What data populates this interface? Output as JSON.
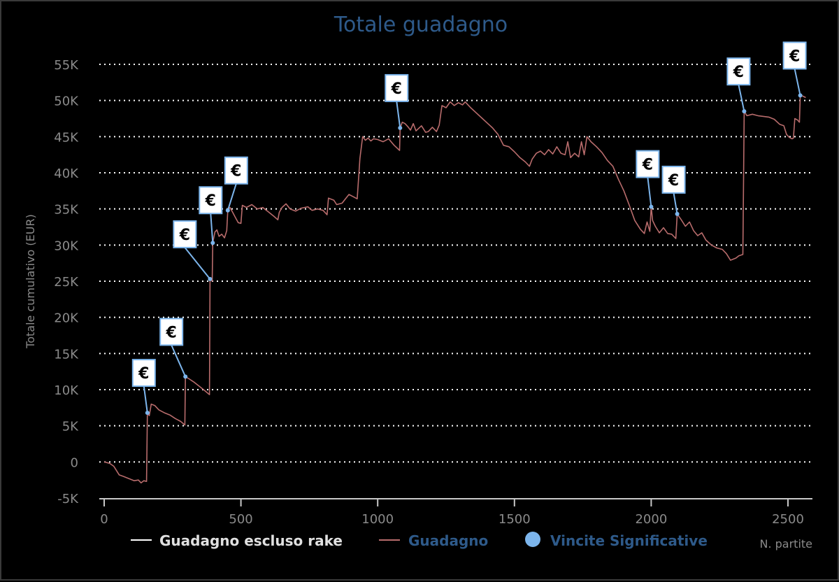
{
  "chart_data": {
    "type": "line",
    "title": "Totale guadagno",
    "xlabel": "N. partite",
    "ylabel": "Totale cumulativo (EUR)",
    "xlim": [
      -10,
      2590
    ],
    "ylim": [
      -5000,
      56000
    ],
    "x_ticks": [
      0,
      500,
      1000,
      1500,
      2000,
      2500
    ],
    "x_tick_labels": [
      "0",
      "500",
      "1000",
      "1500",
      "2000",
      "2500"
    ],
    "y_ticks": [
      -5000,
      0,
      5000,
      10000,
      15000,
      20000,
      25000,
      30000,
      35000,
      40000,
      45000,
      50000,
      55000
    ],
    "y_tick_labels": [
      "-5K",
      "0",
      "5K",
      "10K",
      "15K",
      "20K",
      "25K",
      "30K",
      "35K",
      "40K",
      "45K",
      "50K",
      "55K"
    ],
    "grid": "horizontal dotted",
    "legend_position": "bottom",
    "legend": [
      {
        "label": "Guadagno escluso rake",
        "color": "#ffffff",
        "marker": "line"
      },
      {
        "label": "Guadagno",
        "color": "#b86c6c",
        "marker": "line"
      },
      {
        "label": "Vincite Significative",
        "color": "#7cb5ec",
        "marker": "circle"
      }
    ],
    "series": [
      {
        "name": "Guadagno",
        "color": "#b86c6c",
        "points": [
          [
            0,
            0
          ],
          [
            20,
            -200
          ],
          [
            35,
            -600
          ],
          [
            45,
            -1200
          ],
          [
            55,
            -1800
          ],
          [
            70,
            -2000
          ],
          [
            90,
            -2300
          ],
          [
            110,
            -2600
          ],
          [
            125,
            -2500
          ],
          [
            135,
            -2900
          ],
          [
            145,
            -2600
          ],
          [
            155,
            -2700
          ],
          [
            158,
            6800
          ],
          [
            165,
            6400
          ],
          [
            172,
            8000
          ],
          [
            185,
            7800
          ],
          [
            200,
            7200
          ],
          [
            220,
            6800
          ],
          [
            240,
            6500
          ],
          [
            260,
            6000
          ],
          [
            280,
            5600
          ],
          [
            295,
            5100
          ],
          [
            297,
            11800
          ],
          [
            310,
            11500
          ],
          [
            330,
            11000
          ],
          [
            350,
            10400
          ],
          [
            370,
            9800
          ],
          [
            385,
            9300
          ],
          [
            387,
            25300
          ],
          [
            395,
            25000
          ],
          [
            397,
            30300
          ],
          [
            405,
            31800
          ],
          [
            412,
            32100
          ],
          [
            420,
            31200
          ],
          [
            430,
            31500
          ],
          [
            440,
            31000
          ],
          [
            448,
            32000
          ],
          [
            452,
            34800
          ],
          [
            460,
            35200
          ],
          [
            470,
            34500
          ],
          [
            480,
            33800
          ],
          [
            490,
            33100
          ],
          [
            500,
            33000
          ],
          [
            505,
            35500
          ],
          [
            520,
            35200
          ],
          [
            540,
            35600
          ],
          [
            560,
            35000
          ],
          [
            580,
            35200
          ],
          [
            600,
            34600
          ],
          [
            620,
            34000
          ],
          [
            635,
            33500
          ],
          [
            640,
            34500
          ],
          [
            650,
            35200
          ],
          [
            665,
            35700
          ],
          [
            680,
            35000
          ],
          [
            700,
            34700
          ],
          [
            720,
            35100
          ],
          [
            745,
            35300
          ],
          [
            760,
            34800
          ],
          [
            780,
            35000
          ],
          [
            800,
            34800
          ],
          [
            815,
            34200
          ],
          [
            820,
            36500
          ],
          [
            840,
            36200
          ],
          [
            850,
            35600
          ],
          [
            870,
            35800
          ],
          [
            880,
            36300
          ],
          [
            895,
            37000
          ],
          [
            910,
            36700
          ],
          [
            925,
            36400
          ],
          [
            935,
            42000
          ],
          [
            945,
            45000
          ],
          [
            955,
            44500
          ],
          [
            965,
            44800
          ],
          [
            975,
            44400
          ],
          [
            985,
            44700
          ],
          [
            1000,
            44600
          ],
          [
            1020,
            44300
          ],
          [
            1040,
            44700
          ],
          [
            1060,
            43800
          ],
          [
            1080,
            43100
          ],
          [
            1082,
            46200
          ],
          [
            1090,
            47000
          ],
          [
            1100,
            46800
          ],
          [
            1110,
            46400
          ],
          [
            1120,
            45900
          ],
          [
            1130,
            46800
          ],
          [
            1140,
            45800
          ],
          [
            1160,
            46500
          ],
          [
            1175,
            45600
          ],
          [
            1185,
            45700
          ],
          [
            1200,
            46300
          ],
          [
            1215,
            45700
          ],
          [
            1225,
            46600
          ],
          [
            1235,
            49300
          ],
          [
            1250,
            49000
          ],
          [
            1265,
            49800
          ],
          [
            1280,
            49300
          ],
          [
            1295,
            49700
          ],
          [
            1310,
            49400
          ],
          [
            1320,
            49800
          ],
          [
            1340,
            49000
          ],
          [
            1360,
            48300
          ],
          [
            1380,
            47600
          ],
          [
            1400,
            46900
          ],
          [
            1420,
            46200
          ],
          [
            1440,
            45300
          ],
          [
            1460,
            43800
          ],
          [
            1480,
            43600
          ],
          [
            1500,
            42900
          ],
          [
            1520,
            42100
          ],
          [
            1540,
            41500
          ],
          [
            1555,
            40900
          ],
          [
            1565,
            41900
          ],
          [
            1580,
            42700
          ],
          [
            1595,
            43000
          ],
          [
            1610,
            42500
          ],
          [
            1625,
            43200
          ],
          [
            1640,
            42600
          ],
          [
            1655,
            43600
          ],
          [
            1670,
            42700
          ],
          [
            1685,
            42500
          ],
          [
            1695,
            44300
          ],
          [
            1705,
            42100
          ],
          [
            1720,
            42700
          ],
          [
            1735,
            42200
          ],
          [
            1745,
            44300
          ],
          [
            1755,
            42500
          ],
          [
            1765,
            45000
          ],
          [
            1780,
            44300
          ],
          [
            1800,
            43600
          ],
          [
            1820,
            42800
          ],
          [
            1840,
            41700
          ],
          [
            1860,
            40900
          ],
          [
            1880,
            39100
          ],
          [
            1900,
            37500
          ],
          [
            1920,
            35500
          ],
          [
            1940,
            33400
          ],
          [
            1960,
            32200
          ],
          [
            1975,
            31600
          ],
          [
            1985,
            33200
          ],
          [
            1995,
            31900
          ],
          [
            2000,
            35300
          ],
          [
            2005,
            33400
          ],
          [
            2015,
            32600
          ],
          [
            2030,
            31700
          ],
          [
            2045,
            32400
          ],
          [
            2060,
            31600
          ],
          [
            2075,
            31500
          ],
          [
            2090,
            30900
          ],
          [
            2095,
            34300
          ],
          [
            2110,
            33500
          ],
          [
            2125,
            32600
          ],
          [
            2140,
            33200
          ],
          [
            2155,
            32000
          ],
          [
            2170,
            31300
          ],
          [
            2185,
            31700
          ],
          [
            2200,
            30700
          ],
          [
            2220,
            30000
          ],
          [
            2240,
            29600
          ],
          [
            2260,
            29400
          ],
          [
            2275,
            28800
          ],
          [
            2290,
            27900
          ],
          [
            2310,
            28200
          ],
          [
            2320,
            28500
          ],
          [
            2335,
            28700
          ],
          [
            2340,
            48500
          ],
          [
            2350,
            47900
          ],
          [
            2370,
            48100
          ],
          [
            2390,
            47900
          ],
          [
            2410,
            47800
          ],
          [
            2430,
            47700
          ],
          [
            2450,
            47400
          ],
          [
            2470,
            46700
          ],
          [
            2485,
            46500
          ],
          [
            2495,
            45300
          ],
          [
            2505,
            44900
          ],
          [
            2515,
            44700
          ],
          [
            2520,
            44800
          ],
          [
            2525,
            47500
          ],
          [
            2535,
            47300
          ],
          [
            2542,
            47000
          ],
          [
            2545,
            50700
          ],
          [
            2555,
            50600
          ],
          [
            2565,
            50400
          ]
        ]
      },
      {
        "name": "Vincite Significative",
        "color": "#7cb5ec",
        "marker_glyph": "€",
        "points": [
          [
            158,
            6800
          ],
          [
            297,
            11800
          ],
          [
            387,
            25300
          ],
          [
            397,
            30300
          ],
          [
            452,
            34800
          ],
          [
            1082,
            46200
          ],
          [
            2000,
            35300
          ],
          [
            2095,
            34300
          ],
          [
            2340,
            48500
          ],
          [
            2545,
            50700
          ]
        ]
      }
    ]
  }
}
